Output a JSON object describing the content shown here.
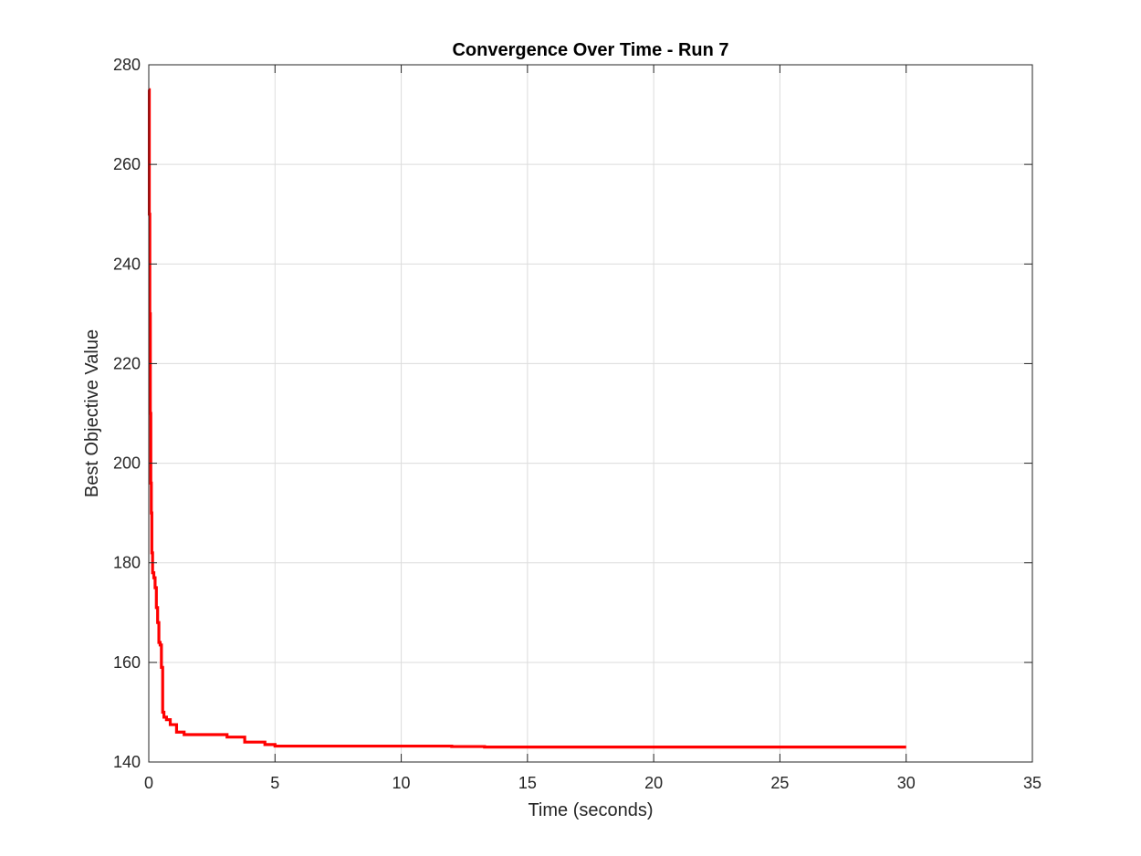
{
  "chart_data": {
    "type": "line",
    "title": "Convergence Over Time - Run 7",
    "xlabel": "Time (seconds)",
    "ylabel": "Best Objective Value",
    "xlim": [
      0,
      35
    ],
    "ylim": [
      140,
      280
    ],
    "xticks": [
      0,
      5,
      10,
      15,
      20,
      25,
      30,
      35
    ],
    "yticks": [
      140,
      160,
      180,
      200,
      220,
      240,
      260,
      280
    ],
    "xtick_labels": [
      "0",
      "5",
      "10",
      "15",
      "20",
      "25",
      "30",
      "35"
    ],
    "ytick_labels": [
      "140",
      "160",
      "180",
      "200",
      "220",
      "240",
      "260",
      "280"
    ],
    "grid": true,
    "box": true,
    "series": [
      {
        "color": "#ff0000",
        "step": true,
        "x": [
          0,
          0.02,
          0.04,
          0.06,
          0.08,
          0.1,
          0.12,
          0.15,
          0.2,
          0.25,
          0.3,
          0.35,
          0.4,
          0.45,
          0.5,
          0.55,
          0.6,
          0.7,
          0.85,
          1.1,
          1.4,
          3.1,
          3.8,
          4.6,
          5.0,
          12.0,
          13.3,
          30.0
        ],
        "y": [
          275,
          250,
          230,
          210,
          196,
          190,
          182,
          178,
          177,
          175,
          171,
          168,
          164,
          163.5,
          159,
          150,
          149,
          148.5,
          147.5,
          146,
          145.5,
          145,
          144,
          143.5,
          143.2,
          143.1,
          143.0,
          143.0
        ]
      }
    ]
  }
}
